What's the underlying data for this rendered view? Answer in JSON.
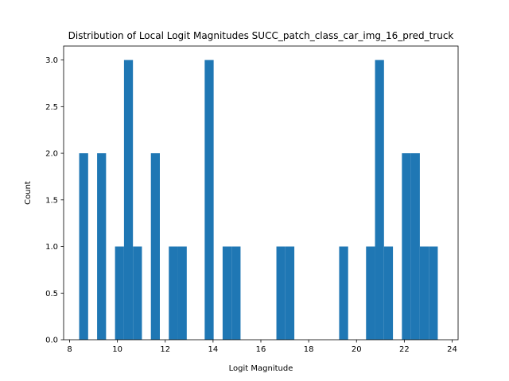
{
  "chart_data": {
    "type": "bar",
    "title": "Distribution of Local Logit Magnitudes SUCC_patch_class_car_img_16_pred_truck",
    "xlabel": "Logit Magnitude",
    "ylabel": "Count",
    "xlim": [
      7.75,
      24.25
    ],
    "ylim": [
      0,
      3.15
    ],
    "xticks": [
      "8",
      "10",
      "12",
      "14",
      "16",
      "18",
      "20",
      "22",
      "24"
    ],
    "yticks": [
      "0.0",
      "0.5",
      "1.0",
      "1.5",
      "2.0",
      "2.5",
      "3.0"
    ],
    "bar_color": "#1f77b4",
    "bin_width": 0.375,
    "bins": [
      {
        "x0": 8.4,
        "count": 2
      },
      {
        "x0": 9.15,
        "count": 2
      },
      {
        "x0": 9.9,
        "count": 1
      },
      {
        "x0": 10.275,
        "count": 3
      },
      {
        "x0": 10.65,
        "count": 1
      },
      {
        "x0": 11.4,
        "count": 2
      },
      {
        "x0": 12.15,
        "count": 1
      },
      {
        "x0": 12.525,
        "count": 1
      },
      {
        "x0": 13.65,
        "count": 3
      },
      {
        "x0": 14.4,
        "count": 1
      },
      {
        "x0": 14.775,
        "count": 1
      },
      {
        "x0": 16.65,
        "count": 1
      },
      {
        "x0": 17.025,
        "count": 1
      },
      {
        "x0": 19.275,
        "count": 1
      },
      {
        "x0": 20.4,
        "count": 1
      },
      {
        "x0": 20.775,
        "count": 3
      },
      {
        "x0": 21.15,
        "count": 1
      },
      {
        "x0": 21.9,
        "count": 2
      },
      {
        "x0": 22.275,
        "count": 2
      },
      {
        "x0": 22.65,
        "count": 1
      },
      {
        "x0": 23.025,
        "count": 1
      }
    ]
  }
}
